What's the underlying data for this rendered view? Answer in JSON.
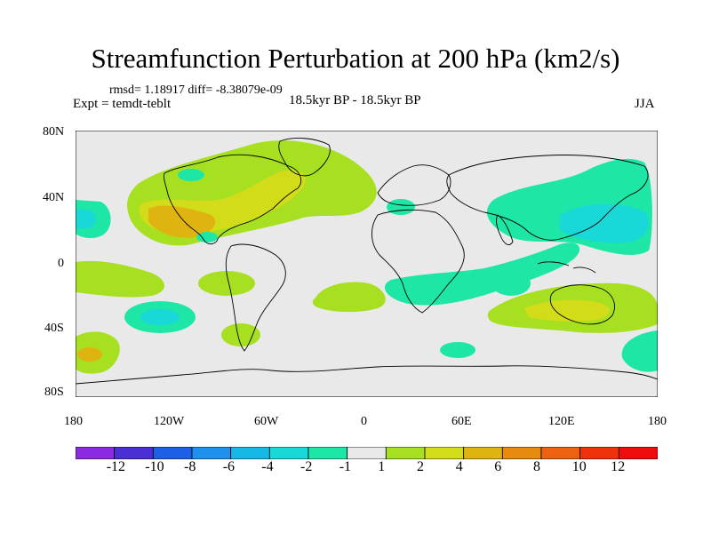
{
  "title": "Streamfunction Perturbation at 200 hPa (km2/s)",
  "stats_line": "rmsd= 1.18917 diff= -8.38079e-09",
  "experiment": "Expt = temdt-teblt",
  "period": "18.5kyr BP - 18.5kyr BP",
  "season": "JJA",
  "axes": {
    "x_ticks": [
      "180",
      "120W",
      "60W",
      "0",
      "60E",
      "120E",
      "180"
    ],
    "y_ticks": [
      "80N",
      "40N",
      "0",
      "40S",
      "80S"
    ]
  },
  "colorbar": {
    "labels": [
      "-12",
      "-10",
      "-8",
      "-6",
      "-4",
      "-2",
      "-1",
      "1",
      "2",
      "4",
      "6",
      "8",
      "10",
      "12"
    ],
    "colors": [
      "#8a2be2",
      "#4b2fd6",
      "#1e5fe8",
      "#1e90ee",
      "#16b8e6",
      "#18d8d8",
      "#1ee6a6",
      "#e9e9e9",
      "#a6e020",
      "#d2dc18",
      "#e0b410",
      "#e88a10",
      "#ec6210",
      "#f0320c",
      "#ee0c0c"
    ]
  },
  "map_colors": {
    "background": "#e9e9e9",
    "pos_1_2": "#a6e020",
    "pos_2_4": "#d2dc18",
    "pos_4_6": "#e0b410",
    "neg_1_2": "#1ee6a6",
    "neg_2_4": "#18d8d8"
  }
}
